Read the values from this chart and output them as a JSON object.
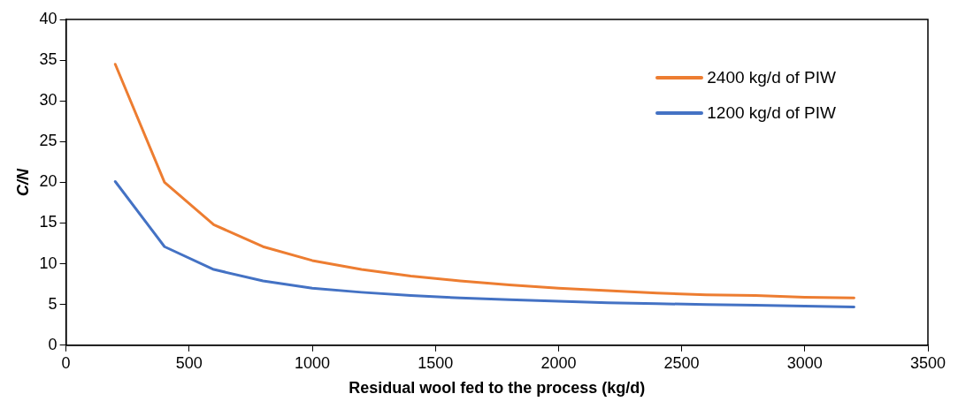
{
  "chart_data": {
    "type": "line",
    "xlabel": "Residual wool fed to the process (kg/d)",
    "ylabel": "C/N",
    "x": [
      200,
      400,
      600,
      800,
      1000,
      1200,
      1400,
      1600,
      1800,
      2000,
      2200,
      2400,
      2600,
      2800,
      3000,
      3200
    ],
    "series": [
      {
        "name": "2400 kg/d of PIW",
        "color": "#ed7d31",
        "values": [
          34.5,
          20,
          14.8,
          12.1,
          10.4,
          9.3,
          8.5,
          7.9,
          7.4,
          7.0,
          6.7,
          6.4,
          6.2,
          6.1,
          5.9,
          5.8
        ]
      },
      {
        "name": "1200 kg/d of PIW",
        "color": "#4472c4",
        "values": [
          20.1,
          12.1,
          9.3,
          7.9,
          7.0,
          6.5,
          6.1,
          5.8,
          5.6,
          5.4,
          5.2,
          5.1,
          5.0,
          4.9,
          4.8,
          4.7
        ]
      }
    ],
    "xlim": [
      0,
      3500
    ],
    "xticks": [
      0,
      500,
      1000,
      1500,
      2000,
      2500,
      3000,
      3500
    ],
    "ylim": [
      0,
      40
    ],
    "yticks": [
      0,
      5,
      10,
      15,
      20,
      25,
      30,
      35,
      40
    ],
    "grid": false,
    "legend": "top right",
    "marker": "none",
    "line_style": "solid"
  }
}
